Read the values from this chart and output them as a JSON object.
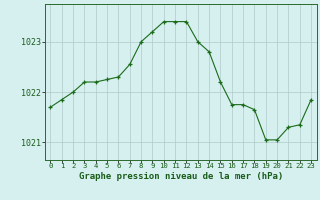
{
  "x": [
    0,
    1,
    2,
    3,
    4,
    5,
    6,
    7,
    8,
    9,
    10,
    11,
    12,
    13,
    14,
    15,
    16,
    17,
    18,
    19,
    20,
    21,
    22,
    23
  ],
  "y": [
    1021.7,
    1021.85,
    1022.0,
    1022.2,
    1022.2,
    1022.25,
    1022.3,
    1022.55,
    1023.0,
    1023.2,
    1023.4,
    1023.4,
    1023.4,
    1023.0,
    1022.8,
    1022.2,
    1021.75,
    1021.75,
    1021.65,
    1021.05,
    1021.05,
    1021.3,
    1021.35,
    1021.85
  ],
  "xlim": [
    -0.5,
    23.5
  ],
  "ylim": [
    1020.65,
    1023.75
  ],
  "yticks": [
    1021,
    1022,
    1023
  ],
  "xticks": [
    0,
    1,
    2,
    3,
    4,
    5,
    6,
    7,
    8,
    9,
    10,
    11,
    12,
    13,
    14,
    15,
    16,
    17,
    18,
    19,
    20,
    21,
    22,
    23
  ],
  "xlabel": "Graphe pression niveau de la mer (hPa)",
  "line_color": "#1a6b1a",
  "marker_color": "#1a6b1a",
  "bg_color": "#d6f0f0",
  "grid_color": "#b0c8c8",
  "tick_label_color": "#1a5c1a",
  "xlabel_color": "#1a5c1a",
  "xlabel_fontsize": 6.5,
  "xtick_fontsize": 5.2,
  "ytick_fontsize": 6.0
}
